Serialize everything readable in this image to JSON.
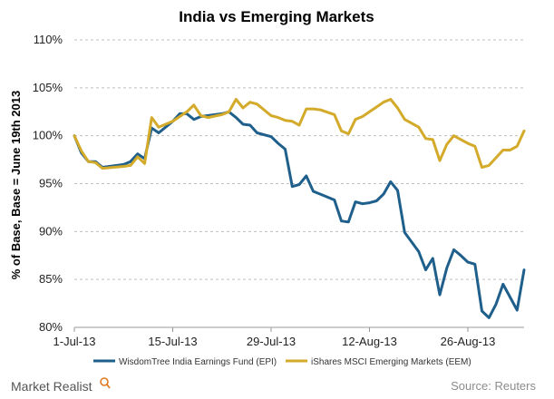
{
  "branding": {
    "logo_text": "Market Realist"
  },
  "chart_data": {
    "type": "line",
    "title": "India vs Emerging Markets",
    "xlabel": "",
    "ylabel": "% of Base, Base = June 19th 2013",
    "ylim": [
      80,
      110
    ],
    "y_ticks": [
      80,
      85,
      90,
      95,
      100,
      105,
      110
    ],
    "y_tick_labels": [
      "80%",
      "85%",
      "90%",
      "95%",
      "100%",
      "105%",
      "110%"
    ],
    "x_start": "2013-07-01",
    "x_end": "2013-09-03",
    "x_ticks": [
      "2013-07-01",
      "2013-07-15",
      "2013-07-29",
      "2013-08-12",
      "2013-08-26"
    ],
    "x_tick_labels": [
      "1-Jul-13",
      "15-Jul-13",
      "29-Jul-13",
      "12-Aug-13",
      "26-Aug-13"
    ],
    "grid": true,
    "legend_position": "bottom",
    "source": "Source: Reuters",
    "series": [
      {
        "name": "WisdomTree India Earnings Fund (EPI)",
        "color": "#1f5f8b",
        "points": [
          [
            "2013-07-01",
            100.0
          ],
          [
            "2013-07-02",
            98.2
          ],
          [
            "2013-07-03",
            97.3
          ],
          [
            "2013-07-04",
            97.3
          ],
          [
            "2013-07-05",
            96.7
          ],
          [
            "2013-07-08",
            97.0
          ],
          [
            "2013-07-09",
            97.3
          ],
          [
            "2013-07-10",
            98.1
          ],
          [
            "2013-07-11",
            97.6
          ],
          [
            "2013-07-12",
            100.8
          ],
          [
            "2013-07-13",
            100.3
          ],
          [
            "2013-07-15",
            101.5
          ],
          [
            "2013-07-16",
            102.3
          ],
          [
            "2013-07-17",
            102.3
          ],
          [
            "2013-07-18",
            101.7
          ],
          [
            "2013-07-19",
            102.0
          ],
          [
            "2013-07-22",
            102.3
          ],
          [
            "2013-07-23",
            102.5
          ],
          [
            "2013-07-24",
            101.9
          ],
          [
            "2013-07-25",
            101.2
          ],
          [
            "2013-07-26",
            101.1
          ],
          [
            "2013-07-27",
            100.3
          ],
          [
            "2013-07-29",
            99.9
          ],
          [
            "2013-07-30",
            99.2
          ],
          [
            "2013-07-31",
            98.6
          ],
          [
            "2013-08-01",
            94.7
          ],
          [
            "2013-08-02",
            94.9
          ],
          [
            "2013-08-03",
            95.8
          ],
          [
            "2013-08-04",
            94.2
          ],
          [
            "2013-08-05",
            93.9
          ],
          [
            "2013-08-07",
            93.3
          ],
          [
            "2013-08-08",
            91.1
          ],
          [
            "2013-08-09",
            91.0
          ],
          [
            "2013-08-10",
            93.1
          ],
          [
            "2013-08-11",
            92.9
          ],
          [
            "2013-08-12",
            93.0
          ],
          [
            "2013-08-13",
            93.2
          ],
          [
            "2013-08-14",
            93.9
          ],
          [
            "2013-08-15",
            95.2
          ],
          [
            "2013-08-16",
            94.3
          ],
          [
            "2013-08-17",
            89.9
          ],
          [
            "2013-08-19",
            87.9
          ],
          [
            "2013-08-20",
            86.0
          ],
          [
            "2013-08-21",
            87.2
          ],
          [
            "2013-08-22",
            83.4
          ],
          [
            "2013-08-23",
            86.2
          ],
          [
            "2013-08-24",
            88.1
          ],
          [
            "2013-08-25",
            87.5
          ],
          [
            "2013-08-26",
            86.8
          ],
          [
            "2013-08-27",
            86.6
          ],
          [
            "2013-08-28",
            81.7
          ],
          [
            "2013-08-29",
            81.0
          ],
          [
            "2013-08-30",
            82.4
          ],
          [
            "2013-08-31",
            84.5
          ],
          [
            "2013-09-02",
            81.8
          ],
          [
            "2013-09-03",
            86.0
          ]
        ]
      },
      {
        "name": "iShares MSCI Emerging Markets (EEM)",
        "color": "#d4aa2a",
        "points": [
          [
            "2013-07-01",
            100.0
          ],
          [
            "2013-07-02",
            98.4
          ],
          [
            "2013-07-03",
            97.3
          ],
          [
            "2013-07-04",
            97.2
          ],
          [
            "2013-07-05",
            96.6
          ],
          [
            "2013-07-08",
            96.8
          ],
          [
            "2013-07-09",
            96.9
          ],
          [
            "2013-07-10",
            97.8
          ],
          [
            "2013-07-11",
            97.1
          ],
          [
            "2013-07-12",
            101.9
          ],
          [
            "2013-07-13",
            100.9
          ],
          [
            "2013-07-15",
            101.5
          ],
          [
            "2013-07-16",
            102.0
          ],
          [
            "2013-07-17",
            102.5
          ],
          [
            "2013-07-18",
            103.2
          ],
          [
            "2013-07-19",
            102.1
          ],
          [
            "2013-07-20",
            101.9
          ],
          [
            "2013-07-22",
            102.2
          ],
          [
            "2013-07-23",
            102.5
          ],
          [
            "2013-07-24",
            103.8
          ],
          [
            "2013-07-25",
            102.9
          ],
          [
            "2013-07-26",
            103.5
          ],
          [
            "2013-07-27",
            103.3
          ],
          [
            "2013-07-29",
            102.1
          ],
          [
            "2013-07-30",
            101.9
          ],
          [
            "2013-07-31",
            101.6
          ],
          [
            "2013-08-01",
            101.5
          ],
          [
            "2013-08-02",
            101.1
          ],
          [
            "2013-08-03",
            102.8
          ],
          [
            "2013-08-04",
            102.8
          ],
          [
            "2013-08-05",
            102.7
          ],
          [
            "2013-08-07",
            102.2
          ],
          [
            "2013-08-08",
            100.5
          ],
          [
            "2013-08-09",
            100.2
          ],
          [
            "2013-08-10",
            101.7
          ],
          [
            "2013-08-11",
            102.0
          ],
          [
            "2013-08-12",
            102.5
          ],
          [
            "2013-08-13",
            103.0
          ],
          [
            "2013-08-14",
            103.5
          ],
          [
            "2013-08-15",
            103.8
          ],
          [
            "2013-08-16",
            102.9
          ],
          [
            "2013-08-17",
            101.7
          ],
          [
            "2013-08-19",
            100.9
          ],
          [
            "2013-08-20",
            99.7
          ],
          [
            "2013-08-21",
            99.6
          ],
          [
            "2013-08-22",
            97.4
          ],
          [
            "2013-08-23",
            99.1
          ],
          [
            "2013-08-24",
            100.0
          ],
          [
            "2013-08-25",
            99.6
          ],
          [
            "2013-08-26",
            99.2
          ],
          [
            "2013-08-27",
            98.9
          ],
          [
            "2013-08-28",
            96.7
          ],
          [
            "2013-08-29",
            96.9
          ],
          [
            "2013-08-30",
            97.7
          ],
          [
            "2013-08-31",
            98.5
          ],
          [
            "2013-09-01",
            98.5
          ],
          [
            "2013-09-02",
            98.9
          ],
          [
            "2013-09-03",
            100.5
          ]
        ]
      }
    ]
  }
}
